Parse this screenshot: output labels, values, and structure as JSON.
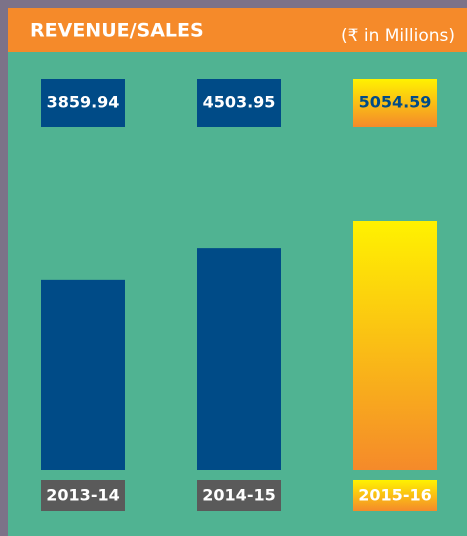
{
  "chart_data": {
    "type": "bar",
    "title": "REVENUE/SALES",
    "subtitle": "(₹ in Millions)",
    "categories": [
      "2013-14",
      "2014-15",
      "2015-16"
    ],
    "values": [
      3859.94,
      4503.95,
      5054.59
    ],
    "colors": [
      "#004b87",
      "#004b87",
      "#fff200"
    ],
    "highlight_gradient": [
      "#fff200",
      "#f58a2a"
    ],
    "label_box_color": "#5a5a5a"
  }
}
